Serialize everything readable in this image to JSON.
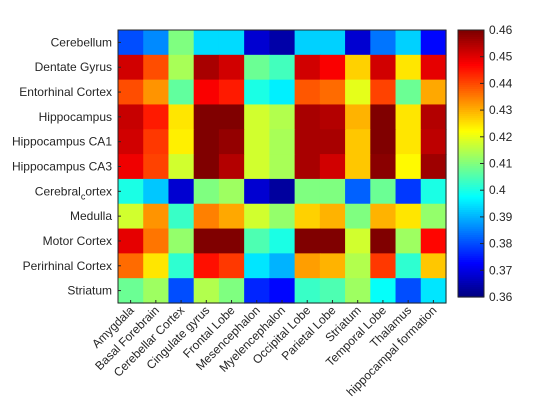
{
  "chart_data": {
    "type": "heatmap",
    "title": "",
    "xlabel": "",
    "ylabel": "",
    "rows": [
      "Cerebellum",
      "Dentate Gyrus",
      "Entorhinal Cortex",
      "Hippocampus",
      "Hippocampus CA1",
      "Hippocampus CA3",
      "Cerebral_cortex",
      "Medulla",
      "Motor Cortex",
      "Perirhinal Cortex",
      "Striatum"
    ],
    "columns": [
      "Amygdala",
      "Basal Forebrain",
      "Cerebellar Cortex",
      "Cingulate gyrus",
      "Frontal Lobe",
      "Mesencephalon",
      "Myelencephalon",
      "Occipital Lobe",
      "Parietal Lobe",
      "Striatum",
      "Temporal Lobe",
      "Thalamus",
      "hippocampal formation"
    ],
    "values": [
      [
        0.38,
        0.386,
        0.41,
        0.394,
        0.394,
        0.368,
        0.364,
        0.393,
        0.393,
        0.368,
        0.384,
        0.393,
        0.373
      ],
      [
        0.452,
        0.44,
        0.414,
        0.456,
        0.452,
        0.408,
        0.404,
        0.452,
        0.448,
        0.427,
        0.452,
        0.425,
        0.45
      ],
      [
        0.44,
        0.433,
        0.407,
        0.448,
        0.445,
        0.4,
        0.396,
        0.439,
        0.437,
        0.42,
        0.441,
        0.408,
        0.431
      ],
      [
        0.453,
        0.445,
        0.425,
        0.462,
        0.46,
        0.418,
        0.415,
        0.456,
        0.455,
        0.43,
        0.46,
        0.425,
        0.455
      ],
      [
        0.452,
        0.442,
        0.424,
        0.461,
        0.458,
        0.418,
        0.414,
        0.456,
        0.456,
        0.428,
        0.46,
        0.425,
        0.454
      ],
      [
        0.449,
        0.441,
        0.418,
        0.46,
        0.455,
        0.418,
        0.414,
        0.456,
        0.452,
        0.428,
        0.459,
        0.423,
        0.457
      ],
      [
        0.4,
        0.392,
        0.368,
        0.41,
        0.413,
        0.368,
        0.363,
        0.41,
        0.41,
        0.382,
        0.408,
        0.378,
        0.4
      ],
      [
        0.418,
        0.433,
        0.403,
        0.435,
        0.431,
        0.418,
        0.412,
        0.427,
        0.43,
        0.41,
        0.43,
        0.425,
        0.412
      ],
      [
        0.45,
        0.436,
        0.412,
        0.46,
        0.463,
        0.405,
        0.4,
        0.46,
        0.46,
        0.418,
        0.46,
        0.413,
        0.447
      ],
      [
        0.437,
        0.425,
        0.402,
        0.446,
        0.442,
        0.395,
        0.39,
        0.432,
        0.43,
        0.415,
        0.442,
        0.402,
        0.428
      ],
      [
        0.408,
        0.413,
        0.38,
        0.415,
        0.41,
        0.376,
        0.373,
        0.403,
        0.405,
        0.413,
        0.398,
        0.38,
        0.395
      ]
    ],
    "colorbar": {
      "colormap": "jet",
      "range": [
        0.36,
        0.46
      ],
      "ticks": [
        0.36,
        0.37,
        0.38,
        0.39,
        0.4,
        0.41,
        0.42,
        0.43,
        0.44,
        0.45,
        0.46
      ],
      "tick_labels": [
        "0.36",
        "0.37",
        "0.38",
        "0.39",
        "0.4",
        "0.41",
        "0.42",
        "0.43",
        "0.44",
        "0.45",
        "0.46"
      ]
    },
    "grid": false,
    "legend": "colorbar-right"
  }
}
